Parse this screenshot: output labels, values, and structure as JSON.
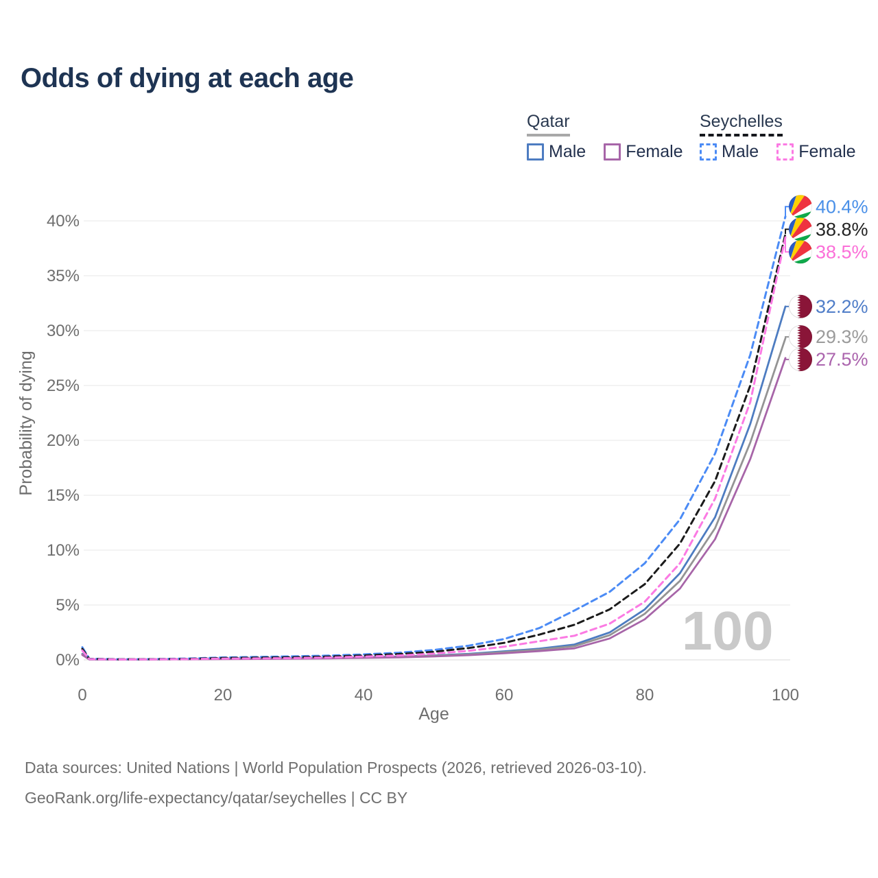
{
  "page_title": "Odds of dying at each age",
  "watermark": "100",
  "legend": {
    "qatar": {
      "label": "Qatar",
      "male_label": "Male",
      "female_label": "Female",
      "male_color": "#4d7cc1",
      "female_color": "#a765a8",
      "line_style": "solid",
      "underline_color": "#a8a8a8"
    },
    "seychelles": {
      "label": "Seychelles",
      "male_label": "Male",
      "female_label": "Female",
      "male_color": "#4b8bf5",
      "female_color": "#fb7ae3",
      "line_style": "dashed",
      "underline_color": "#16181d"
    }
  },
  "footer": {
    "sources": "Data sources: United Nations | World Population Prospects (2026, retrieved 2026-03-10).",
    "attribution": "GeoRank.org/life-expectancy/qatar/seychelles | CC BY"
  },
  "flags": {
    "seychelles": {
      "blue": "#2a5cc6",
      "yellow": "#ffd100",
      "red": "#ef3340",
      "white": "#ffffff",
      "green": "#0faa4b"
    },
    "qatar": {
      "maroon": "#8a1538",
      "white": "#ffffff"
    }
  },
  "chart_data": {
    "type": "line",
    "title": "Odds of dying at each age",
    "xlabel": "Age",
    "ylabel": "Probability of dying",
    "xlim": [
      0,
      100
    ],
    "ylim": [
      0,
      42
    ],
    "xticks": [
      0,
      20,
      40,
      60,
      80,
      100
    ],
    "yticks_percent": [
      0,
      5,
      10,
      15,
      20,
      25,
      30,
      35,
      40
    ],
    "grid": "horizontal-only",
    "legend_position": "top-right",
    "x": [
      0,
      1,
      5,
      10,
      15,
      20,
      25,
      30,
      35,
      40,
      45,
      50,
      55,
      60,
      65,
      70,
      75,
      80,
      85,
      90,
      95,
      100
    ],
    "series": [
      {
        "name": "Qatar — Male",
        "country": "Qatar",
        "sex": "male",
        "style": "solid",
        "color": "#4d7cc1",
        "label_color": "#4f7dc8",
        "flag": "qatar",
        "end_label": "32.2%",
        "values": [
          0.55,
          0.05,
          0.04,
          0.05,
          0.08,
          0.12,
          0.14,
          0.16,
          0.19,
          0.24,
          0.3,
          0.4,
          0.55,
          0.78,
          1.02,
          1.4,
          2.5,
          4.6,
          7.9,
          13.0,
          21.5,
          32.2
        ]
      },
      {
        "name": "Qatar — Both sexes",
        "country": "Qatar",
        "sex": "both",
        "style": "solid",
        "color": "#949494",
        "label_color": "#9b9b9b",
        "flag": "qatar",
        "end_label": "29.3%",
        "values": [
          0.5,
          0.05,
          0.04,
          0.04,
          0.07,
          0.1,
          0.12,
          0.14,
          0.17,
          0.21,
          0.27,
          0.36,
          0.5,
          0.7,
          0.93,
          1.25,
          2.25,
          4.2,
          7.2,
          12.0,
          19.8,
          29.3
        ]
      },
      {
        "name": "Qatar — Female",
        "country": "Qatar",
        "sex": "female",
        "style": "solid",
        "color": "#a765a8",
        "label_color": "#ab64ad",
        "flag": "qatar",
        "end_label": "27.5%",
        "values": [
          0.45,
          0.04,
          0.03,
          0.04,
          0.05,
          0.07,
          0.09,
          0.11,
          0.14,
          0.18,
          0.23,
          0.31,
          0.43,
          0.6,
          0.8,
          1.05,
          1.95,
          3.7,
          6.5,
          11.0,
          18.3,
          27.5
        ]
      },
      {
        "name": "Seychelles — Male",
        "country": "Seychelles",
        "sex": "male",
        "style": "dashed",
        "color": "#4b8bf5",
        "label_color": "#4a90e8",
        "flag": "seychelles",
        "end_label": "40.4%",
        "values": [
          1.15,
          0.1,
          0.06,
          0.07,
          0.12,
          0.22,
          0.27,
          0.32,
          0.39,
          0.5,
          0.65,
          0.9,
          1.3,
          1.9,
          2.9,
          4.5,
          6.2,
          8.8,
          12.8,
          18.8,
          27.8,
          40.4
        ]
      },
      {
        "name": "Seychelles — Both sexes",
        "country": "Seychelles",
        "sex": "both",
        "style": "dashed",
        "color": "#1b1b1b",
        "label_color": "#232323",
        "flag": "seychelles",
        "end_label": "38.8%",
        "values": [
          1.0,
          0.09,
          0.05,
          0.06,
          0.09,
          0.17,
          0.2,
          0.24,
          0.3,
          0.4,
          0.53,
          0.74,
          1.08,
          1.55,
          2.3,
          3.2,
          4.6,
          6.9,
          10.6,
          16.3,
          25.0,
          38.8
        ]
      },
      {
        "name": "Seychelles — Female",
        "country": "Seychelles",
        "sex": "female",
        "style": "dashed",
        "color": "#fb7ae3",
        "label_color": "#fb6fd8",
        "flag": "seychelles",
        "end_label": "38.5%",
        "values": [
          0.85,
          0.07,
          0.04,
          0.05,
          0.07,
          0.11,
          0.13,
          0.16,
          0.21,
          0.3,
          0.4,
          0.56,
          0.83,
          1.2,
          1.7,
          2.2,
          3.3,
          5.3,
          8.8,
          14.7,
          23.5,
          38.5
        ]
      }
    ]
  }
}
